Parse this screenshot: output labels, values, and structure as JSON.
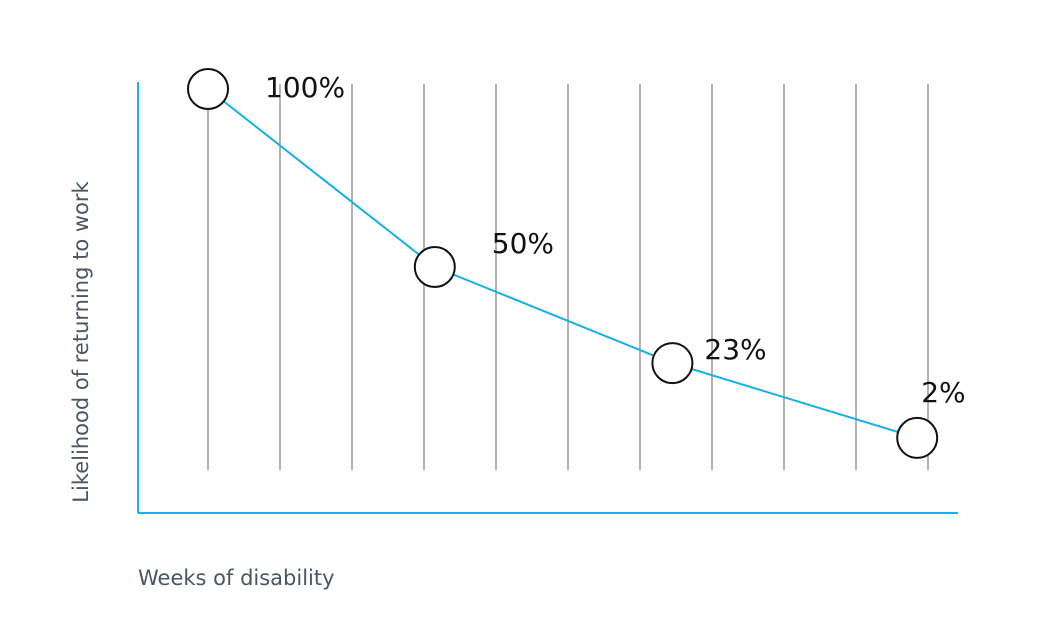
{
  "chart_data": {
    "type": "line",
    "title": "",
    "xlabel": "Weeks of disability",
    "ylabel": "Likelihood of returning to work",
    "ylim": [
      0,
      100
    ],
    "grid": "vertical",
    "colors": {
      "series": "#14b1e7",
      "axis": "#14b1e7",
      "grid": "#666666",
      "marker_fill": "#ffffff",
      "marker_stroke": "#111111"
    },
    "series": [
      {
        "name": "Likelihood of returning to work",
        "points": [
          {
            "x": 1,
            "y": 100,
            "label": "100%"
          },
          {
            "x": 4.15,
            "y": 50,
            "label": "50%"
          },
          {
            "x": 7.45,
            "y": 23,
            "label": "23%"
          },
          {
            "x": 10.85,
            "y": 2,
            "label": "2%"
          }
        ]
      }
    ]
  }
}
